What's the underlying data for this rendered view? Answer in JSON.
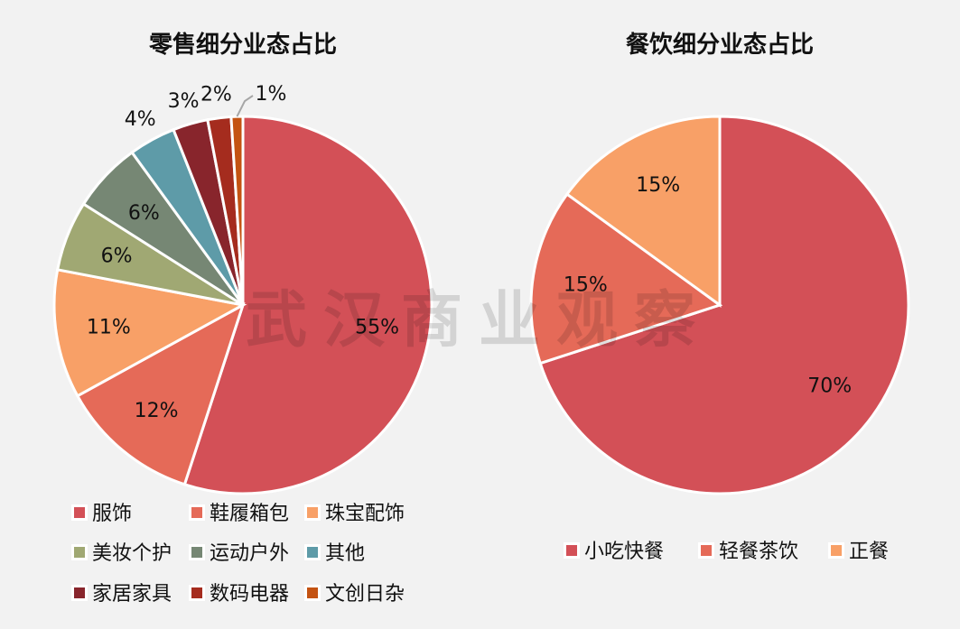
{
  "watermark": "武汉商业观察",
  "chart_data": [
    {
      "type": "pie",
      "title": "零售细分业态占比",
      "categories": [
        "服饰",
        "鞋履箱包",
        "珠宝配饰",
        "美妆个护",
        "运动户外",
        "其他",
        "家居家具",
        "数码电器",
        "文创日杂"
      ],
      "values": [
        55,
        12,
        11,
        6,
        6,
        4,
        3,
        2,
        1
      ],
      "labels": [
        "55%",
        "12%",
        "11%",
        "6%",
        "6%",
        "4%",
        "3%",
        "2%",
        "1%"
      ],
      "colors": [
        "#D35057",
        "#E56A58",
        "#F8A067",
        "#A0A873",
        "#768774",
        "#5E9BA8",
        "#88252C",
        "#A52C1E",
        "#C45312"
      ],
      "legend": "bottom",
      "legend_columns": 3
    },
    {
      "type": "pie",
      "title": "餐饮细分业态占比",
      "categories": [
        "小吃快餐",
        "轻餐茶饮",
        "正餐"
      ],
      "values": [
        70,
        15,
        15
      ],
      "labels": [
        "70%",
        "15%",
        "15%"
      ],
      "colors": [
        "#D35057",
        "#E56A58",
        "#F8A067"
      ],
      "legend": "bottom",
      "legend_columns": 3
    }
  ]
}
